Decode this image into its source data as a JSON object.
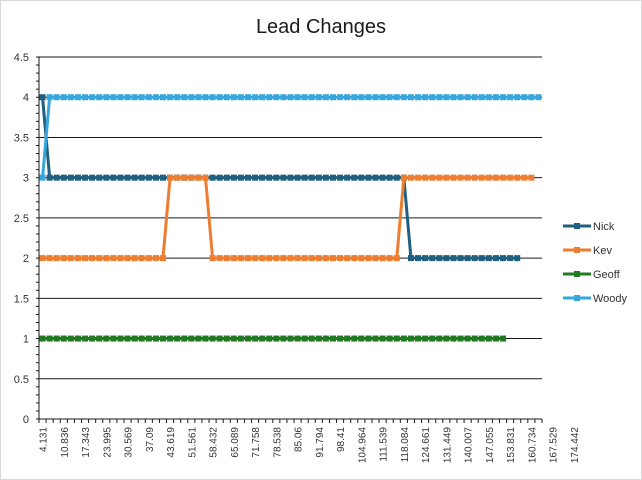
{
  "chart_data": {
    "type": "line",
    "title": "Lead Changes",
    "xlabel": "",
    "ylabel": "",
    "ylim": [
      0,
      4.5
    ],
    "ystep": 0.5,
    "y_tick_labels": [
      "0",
      "0.5",
      "1",
      "1.5",
      "2",
      "2.5",
      "3",
      "3.5",
      "4",
      "4.5"
    ],
    "grid": "horizontal",
    "legend_position": "right",
    "x_count": 71,
    "x_tick_labels": [
      "4.131",
      "10.836",
      "17.343",
      "23.995",
      "30.569",
      "37.09",
      "43.619",
      "51.561",
      "58.432",
      "65.089",
      "71.758",
      "78.538",
      "85.06",
      "91.794",
      "98.41",
      "104.964",
      "111.539",
      "118.084",
      "124.661",
      "131.449",
      "140.007",
      "147.055",
      "153.831",
      "160.734",
      "167.529",
      "174.442"
    ],
    "series": [
      {
        "name": "Nick",
        "color": "#1f5f7f",
        "values": [
          4,
          3,
          3,
          3,
          3,
          3,
          3,
          3,
          3,
          3,
          3,
          3,
          3,
          3,
          3,
          3,
          3,
          3,
          3,
          3,
          3,
          3,
          3,
          3,
          3,
          3,
          3,
          3,
          3,
          3,
          3,
          3,
          3,
          3,
          3,
          3,
          3,
          3,
          3,
          3,
          3,
          3,
          3,
          3,
          3,
          3,
          3,
          3,
          3,
          3,
          3,
          3,
          2,
          2,
          2,
          2,
          2,
          2,
          2,
          2,
          2,
          2,
          2,
          2,
          2,
          2,
          2,
          2
        ]
      },
      {
        "name": "Kev",
        "color": "#ed7d31",
        "values": [
          2,
          2,
          2,
          2,
          2,
          2,
          2,
          2,
          2,
          2,
          2,
          2,
          2,
          2,
          2,
          2,
          2,
          2,
          3,
          3,
          3,
          3,
          3,
          3,
          2,
          2,
          2,
          2,
          2,
          2,
          2,
          2,
          2,
          2,
          2,
          2,
          2,
          2,
          2,
          2,
          2,
          2,
          2,
          2,
          2,
          2,
          2,
          2,
          2,
          2,
          2,
          3,
          3,
          3,
          3,
          3,
          3,
          3,
          3,
          3,
          3,
          3,
          3,
          3,
          3,
          3,
          3,
          3,
          3,
          3
        ]
      },
      {
        "name": "Geoff",
        "color": "#217a21",
        "values": [
          1,
          1,
          1,
          1,
          1,
          1,
          1,
          1,
          1,
          1,
          1,
          1,
          1,
          1,
          1,
          1,
          1,
          1,
          1,
          1,
          1,
          1,
          1,
          1,
          1,
          1,
          1,
          1,
          1,
          1,
          1,
          1,
          1,
          1,
          1,
          1,
          1,
          1,
          1,
          1,
          1,
          1,
          1,
          1,
          1,
          1,
          1,
          1,
          1,
          1,
          1,
          1,
          1,
          1,
          1,
          1,
          1,
          1,
          1,
          1,
          1,
          1,
          1,
          1,
          1,
          1
        ]
      },
      {
        "name": "Woody",
        "color": "#36a6dd",
        "values": [
          3,
          4,
          4,
          4,
          4,
          4,
          4,
          4,
          4,
          4,
          4,
          4,
          4,
          4,
          4,
          4,
          4,
          4,
          4,
          4,
          4,
          4,
          4,
          4,
          4,
          4,
          4,
          4,
          4,
          4,
          4,
          4,
          4,
          4,
          4,
          4,
          4,
          4,
          4,
          4,
          4,
          4,
          4,
          4,
          4,
          4,
          4,
          4,
          4,
          4,
          4,
          4,
          4,
          4,
          4,
          4,
          4,
          4,
          4,
          4,
          4,
          4,
          4,
          4,
          4,
          4,
          4,
          4,
          4,
          4,
          4
        ]
      }
    ]
  }
}
